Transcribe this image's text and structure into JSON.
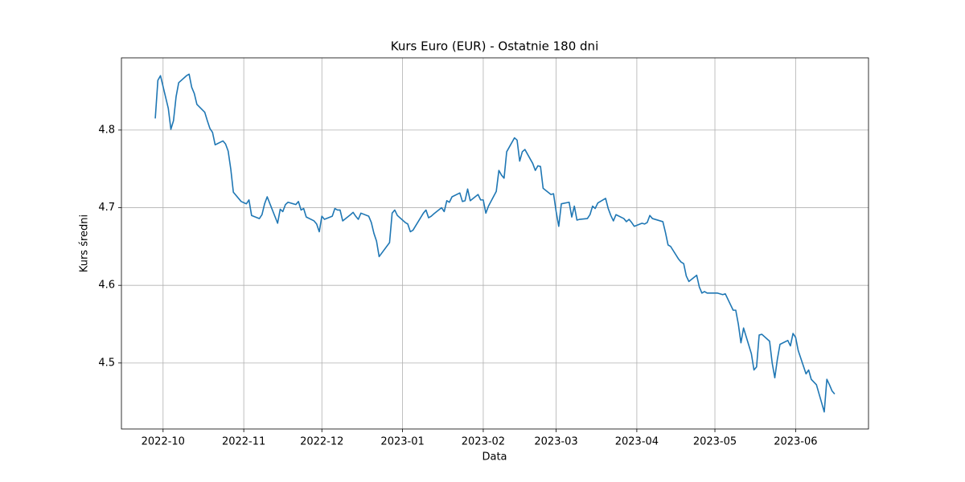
{
  "chart_data": {
    "type": "line",
    "title": "Kurs Euro (EUR) - Ostatnie 180 dni",
    "x_label": "Data",
    "y_label": "Kurs średni",
    "color": "#1f77b4",
    "grid": true,
    "x": [
      "2022-09-28",
      "2022-09-29",
      "2022-09-30",
      "2022-10-03",
      "2022-10-04",
      "2022-10-05",
      "2022-10-06",
      "2022-10-07",
      "2022-10-10",
      "2022-10-11",
      "2022-10-12",
      "2022-10-13",
      "2022-10-14",
      "2022-10-17",
      "2022-10-18",
      "2022-10-19",
      "2022-10-20",
      "2022-10-21",
      "2022-10-24",
      "2022-10-25",
      "2022-10-26",
      "2022-10-27",
      "2022-10-28",
      "2022-10-31",
      "2022-11-02",
      "2022-11-03",
      "2022-11-04",
      "2022-11-07",
      "2022-11-08",
      "2022-11-09",
      "2022-11-10",
      "2022-11-14",
      "2022-11-15",
      "2022-11-16",
      "2022-11-17",
      "2022-11-18",
      "2022-11-21",
      "2022-11-22",
      "2022-11-23",
      "2022-11-24",
      "2022-11-25",
      "2022-11-28",
      "2022-11-29",
      "2022-11-30",
      "2022-12-01",
      "2022-12-02",
      "2022-12-05",
      "2022-12-06",
      "2022-12-07",
      "2022-12-08",
      "2022-12-09",
      "2022-12-12",
      "2022-12-13",
      "2022-12-14",
      "2022-12-15",
      "2022-12-16",
      "2022-12-19",
      "2022-12-20",
      "2022-12-21",
      "2022-12-22",
      "2022-12-23",
      "2022-12-27",
      "2022-12-28",
      "2022-12-29",
      "2022-12-30",
      "2023-01-02",
      "2023-01-03",
      "2023-01-04",
      "2023-01-05",
      "2023-01-09",
      "2023-01-10",
      "2023-01-11",
      "2023-01-12",
      "2023-01-13",
      "2023-01-16",
      "2023-01-17",
      "2023-01-18",
      "2023-01-19",
      "2023-01-20",
      "2023-01-23",
      "2023-01-24",
      "2023-01-25",
      "2023-01-26",
      "2023-01-27",
      "2023-01-30",
      "2023-01-31",
      "2023-02-01",
      "2023-02-02",
      "2023-02-03",
      "2023-02-06",
      "2023-02-07",
      "2023-02-08",
      "2023-02-09",
      "2023-02-10",
      "2023-02-13",
      "2023-02-14",
      "2023-02-15",
      "2023-02-16",
      "2023-02-17",
      "2023-02-20",
      "2023-02-21",
      "2023-02-22",
      "2023-02-23",
      "2023-02-24",
      "2023-02-27",
      "2023-02-28",
      "2023-03-01",
      "2023-03-02",
      "2023-03-03",
      "2023-03-06",
      "2023-03-07",
      "2023-03-08",
      "2023-03-09",
      "2023-03-10",
      "2023-03-13",
      "2023-03-14",
      "2023-03-15",
      "2023-03-16",
      "2023-03-17",
      "2023-03-20",
      "2023-03-21",
      "2023-03-22",
      "2023-03-23",
      "2023-03-24",
      "2023-03-27",
      "2023-03-28",
      "2023-03-29",
      "2023-03-30",
      "2023-03-31",
      "2023-04-03",
      "2023-04-04",
      "2023-04-05",
      "2023-04-06",
      "2023-04-07",
      "2023-04-11",
      "2023-04-12",
      "2023-04-13",
      "2023-04-14",
      "2023-04-17",
      "2023-04-18",
      "2023-04-19",
      "2023-04-20",
      "2023-04-21",
      "2023-04-24",
      "2023-04-25",
      "2023-04-26",
      "2023-04-27",
      "2023-04-28",
      "2023-05-02",
      "2023-05-04",
      "2023-05-05",
      "2023-05-08",
      "2023-05-09",
      "2023-05-10",
      "2023-05-11",
      "2023-05-12",
      "2023-05-15",
      "2023-05-16",
      "2023-05-17",
      "2023-05-18",
      "2023-05-19",
      "2023-05-22",
      "2023-05-23",
      "2023-05-24",
      "2023-05-25",
      "2023-05-26",
      "2023-05-29",
      "2023-05-30",
      "2023-05-31",
      "2023-06-01",
      "2023-06-02",
      "2023-06-05",
      "2023-06-06",
      "2023-06-07",
      "2023-06-09",
      "2023-06-12",
      "2023-06-13",
      "2023-06-14",
      "2023-06-15",
      "2023-06-16"
    ],
    "values": [
      4.815,
      4.864,
      4.87,
      4.828,
      4.801,
      4.812,
      4.843,
      4.861,
      4.87,
      4.872,
      4.855,
      4.847,
      4.833,
      4.823,
      4.812,
      4.802,
      4.797,
      4.781,
      4.786,
      4.782,
      4.773,
      4.75,
      4.72,
      4.708,
      4.705,
      4.71,
      4.69,
      4.686,
      4.691,
      4.705,
      4.714,
      4.68,
      4.698,
      4.695,
      4.704,
      4.707,
      4.704,
      4.708,
      4.697,
      4.699,
      4.688,
      4.683,
      4.679,
      4.669,
      4.689,
      4.685,
      4.689,
      4.699,
      4.697,
      4.697,
      4.683,
      4.691,
      4.694,
      4.689,
      4.685,
      4.693,
      4.689,
      4.681,
      4.667,
      4.657,
      4.637,
      4.655,
      4.693,
      4.697,
      4.69,
      4.681,
      4.679,
      4.669,
      4.671,
      4.693,
      4.697,
      4.687,
      4.689,
      4.692,
      4.7,
      4.695,
      4.709,
      4.707,
      4.714,
      4.719,
      4.708,
      4.709,
      4.724,
      4.709,
      4.717,
      4.71,
      4.71,
      4.693,
      4.702,
      4.721,
      4.748,
      4.742,
      4.738,
      4.772,
      4.79,
      4.787,
      4.76,
      4.772,
      4.775,
      4.757,
      4.748,
      4.754,
      4.753,
      4.725,
      4.717,
      4.718,
      4.695,
      4.676,
      4.705,
      4.707,
      4.688,
      4.702,
      4.684,
      4.685,
      4.686,
      4.691,
      4.702,
      4.699,
      4.706,
      4.712,
      4.699,
      4.69,
      4.683,
      4.691,
      4.686,
      4.682,
      4.685,
      4.681,
      4.676,
      4.68,
      4.679,
      4.681,
      4.69,
      4.686,
      4.682,
      4.668,
      4.652,
      4.65,
      4.634,
      4.63,
      4.628,
      4.612,
      4.605,
      4.613,
      4.598,
      4.59,
      4.592,
      4.59,
      4.59,
      4.588,
      4.589,
      4.568,
      4.568,
      4.55,
      4.526,
      4.545,
      4.512,
      4.491,
      4.495,
      4.536,
      4.537,
      4.528,
      4.5,
      4.481,
      4.505,
      4.524,
      4.529,
      4.522,
      4.538,
      4.533,
      4.516,
      4.486,
      4.491,
      4.479,
      4.472,
      4.437,
      4.479,
      4.472,
      4.464,
      4.46
    ],
    "xlim": [
      "2022-09-15",
      "2023-06-29"
    ],
    "xticks": [
      {
        "value": "2022-10-01",
        "label": "2022-10"
      },
      {
        "value": "2022-11-01",
        "label": "2022-11"
      },
      {
        "value": "2022-12-01",
        "label": "2022-12"
      },
      {
        "value": "2023-01-01",
        "label": "2023-01"
      },
      {
        "value": "2023-02-01",
        "label": "2023-02"
      },
      {
        "value": "2023-03-01",
        "label": "2023-03"
      },
      {
        "value": "2023-04-01",
        "label": "2023-04"
      },
      {
        "value": "2023-05-01",
        "label": "2023-05"
      },
      {
        "value": "2023-06-01",
        "label": "2023-06"
      }
    ],
    "ylim": [
      4.415,
      4.893
    ],
    "yticks": [
      4.5,
      4.6,
      4.7,
      4.8
    ]
  }
}
